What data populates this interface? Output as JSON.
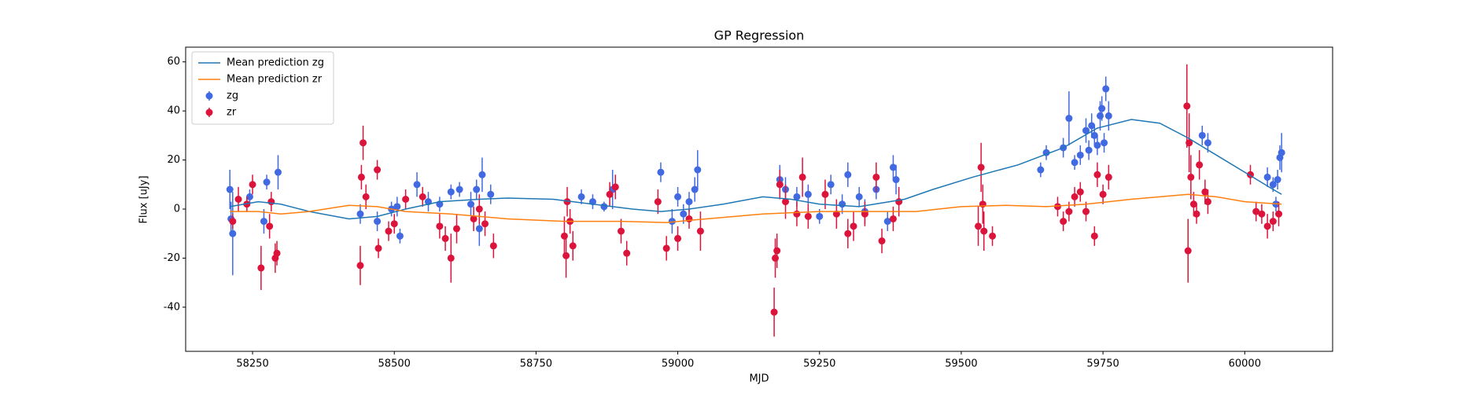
{
  "chart_data": {
    "type": "errorbar",
    "title": "GP Regression",
    "x_label": "MJD",
    "y_label": "Flux [uJy]",
    "xlim": [
      58132,
      60155
    ],
    "ylim": [
      -58,
      66
    ],
    "xticks": [
      58250,
      58500,
      58750,
      59000,
      59250,
      59500,
      59750,
      60000
    ],
    "yticks": [
      -40,
      -20,
      0,
      20,
      40,
      60
    ],
    "legend": "upper left",
    "series": [
      {
        "name": "Mean prediction zg",
        "type": "line",
        "color": "#1f77b4",
        "x": [
          58210,
          58260,
          58300,
          58350,
          58420,
          58470,
          58520,
          58580,
          58650,
          58700,
          58780,
          58850,
          58920,
          58970,
          59020,
          59080,
          59150,
          59200,
          59250,
          59320,
          59400,
          59450,
          59520,
          59600,
          59680,
          59740,
          59800,
          59850,
          59900,
          59950,
          60000,
          60050,
          60065
        ],
        "values": [
          1,
          3,
          2,
          -1,
          -4,
          -3,
          0,
          3,
          4,
          4.5,
          4,
          2,
          0,
          -1,
          0,
          2,
          5,
          4,
          2,
          1,
          4,
          8,
          13,
          18,
          25,
          33,
          36.5,
          35,
          29,
          22,
          15,
          8,
          6
        ]
      },
      {
        "name": "Mean prediction zr",
        "type": "line",
        "color": "#ff7f0e",
        "x": [
          58210,
          58260,
          58300,
          58350,
          58420,
          58470,
          58520,
          58600,
          58700,
          58800,
          58900,
          58980,
          59050,
          59150,
          59250,
          59350,
          59420,
          59500,
          59580,
          59650,
          59720,
          59800,
          59900,
          59950,
          60000,
          60065
        ],
        "values": [
          -1,
          -1,
          -2,
          -1,
          1.5,
          1,
          -1,
          -2,
          -4,
          -5,
          -5,
          -5.5,
          -4,
          -2,
          -1,
          -1,
          -1,
          1,
          1.5,
          1,
          2,
          4,
          6,
          5,
          3,
          2
        ]
      },
      {
        "name": "zg",
        "type": "errorbar",
        "color": "#4169e1",
        "x": [
          58210,
          58212,
          58215,
          58245,
          58270,
          58275,
          58295,
          58440,
          58470,
          58495,
          58505,
          58510,
          58540,
          58560,
          58580,
          58600,
          58615,
          58635,
          58645,
          58655,
          58650,
          58670,
          58830,
          58850,
          58870,
          58885,
          58970,
          58990,
          59000,
          59010,
          59020,
          59030,
          59035,
          59180,
          59190,
          59210,
          59230,
          59250,
          59270,
          59290,
          59300,
          59320,
          59330,
          59350,
          59370,
          59380,
          59385,
          59640,
          59650,
          59680,
          59690,
          59700,
          59710,
          59720,
          59725,
          59730,
          59735,
          59740,
          59745,
          59748,
          59752,
          59755,
          59760,
          59925,
          59935,
          60040,
          60050,
          60055,
          60058,
          60062,
          60065
        ],
        "values": [
          8,
          -4,
          -10,
          5,
          -5,
          11,
          15,
          -2,
          -5,
          0,
          1,
          -11,
          10,
          3,
          2,
          7,
          8,
          2,
          8,
          14,
          -8,
          6,
          5,
          3,
          1,
          8,
          15,
          -5,
          5,
          -2,
          3,
          8,
          16,
          12,
          8,
          5,
          6,
          -3,
          10,
          2,
          14,
          5,
          -1,
          8,
          -5,
          17,
          12,
          16,
          23,
          25,
          37,
          19,
          22,
          32,
          24,
          34,
          30,
          26,
          38,
          41,
          27,
          49,
          38,
          30,
          27,
          13,
          10,
          2,
          12,
          21,
          23
        ],
        "errors": [
          8,
          7,
          17,
          3,
          5,
          3,
          7,
          4,
          4,
          3,
          4,
          3,
          5,
          4,
          3,
          3,
          3,
          5,
          4,
          7,
          7,
          4,
          3,
          3,
          2,
          8,
          4,
          5,
          4,
          4,
          4,
          5,
          8,
          6,
          5,
          4,
          4,
          3,
          4,
          4,
          5,
          4,
          5,
          4,
          4,
          5,
          6,
          3,
          3,
          4,
          11,
          3,
          4,
          5,
          4,
          5,
          4,
          4,
          6,
          5,
          4,
          5,
          6,
          4,
          4,
          4,
          3,
          3,
          4,
          5,
          8
        ]
      },
      {
        "name": "zr",
        "type": "errorbar",
        "color": "#dc143c",
        "x": [
          58215,
          58225,
          58240,
          58250,
          58265,
          58280,
          58283,
          58290,
          58293,
          58440,
          58442,
          58445,
          58450,
          58470,
          58472,
          58490,
          58500,
          58520,
          58550,
          58580,
          58590,
          58600,
          58610,
          58640,
          58650,
          58660,
          58675,
          58800,
          58803,
          58805,
          58810,
          58815,
          58880,
          58890,
          58900,
          58910,
          58965,
          58980,
          59000,
          59020,
          59040,
          59170,
          59172,
          59175,
          59180,
          59190,
          59210,
          59220,
          59230,
          59260,
          59280,
          59300,
          59310,
          59330,
          59350,
          59360,
          59380,
          59390,
          59530,
          59535,
          59538,
          59540,
          59555,
          59670,
          59680,
          59690,
          59700,
          59710,
          59720,
          59735,
          59740,
          59750,
          59760,
          59898,
          59900,
          59902,
          59905,
          59910,
          59915,
          59920,
          59930,
          59935,
          60010,
          60020,
          60030,
          60040,
          60050,
          60060
        ],
        "values": [
          -5,
          4,
          2,
          10,
          -24,
          -7,
          3,
          -20,
          -18,
          -23,
          13,
          27,
          5,
          16,
          -16,
          -9,
          -6,
          4,
          5,
          -7,
          -12,
          -20,
          -8,
          -4,
          0,
          -6,
          -15,
          -11,
          -19,
          3,
          -5,
          -15,
          6,
          9,
          -9,
          -18,
          3,
          -16,
          -12,
          -4,
          -9,
          -42,
          -20,
          -17,
          10,
          3,
          -2,
          13,
          -3,
          6,
          -2,
          -10,
          -7,
          -2,
          13,
          -13,
          -4,
          3,
          -7,
          17,
          2,
          -9,
          -11,
          1,
          -5,
          -1,
          5,
          7,
          -1,
          -11,
          14,
          6,
          13,
          42,
          -17,
          27,
          13,
          2,
          -2,
          18,
          7,
          3,
          14,
          -1,
          -2,
          -7,
          -5,
          -2
        ],
        "errors": [
          3,
          5,
          3,
          4,
          9,
          5,
          4,
          6,
          5,
          8,
          5,
          7,
          5,
          4,
          4,
          4,
          4,
          4,
          4,
          5,
          5,
          10,
          6,
          5,
          6,
          5,
          5,
          8,
          9,
          6,
          5,
          6,
          5,
          5,
          5,
          5,
          5,
          5,
          5,
          4,
          8,
          10,
          8,
          7,
          6,
          7,
          5,
          8,
          5,
          6,
          6,
          6,
          6,
          5,
          6,
          5,
          5,
          6,
          8,
          10,
          8,
          8,
          4,
          4,
          4,
          4,
          4,
          4,
          4,
          4,
          5,
          4,
          5,
          17,
          13,
          12,
          9,
          5,
          4,
          6,
          5,
          5,
          4,
          4,
          4,
          5,
          4,
          5
        ]
      }
    ]
  }
}
